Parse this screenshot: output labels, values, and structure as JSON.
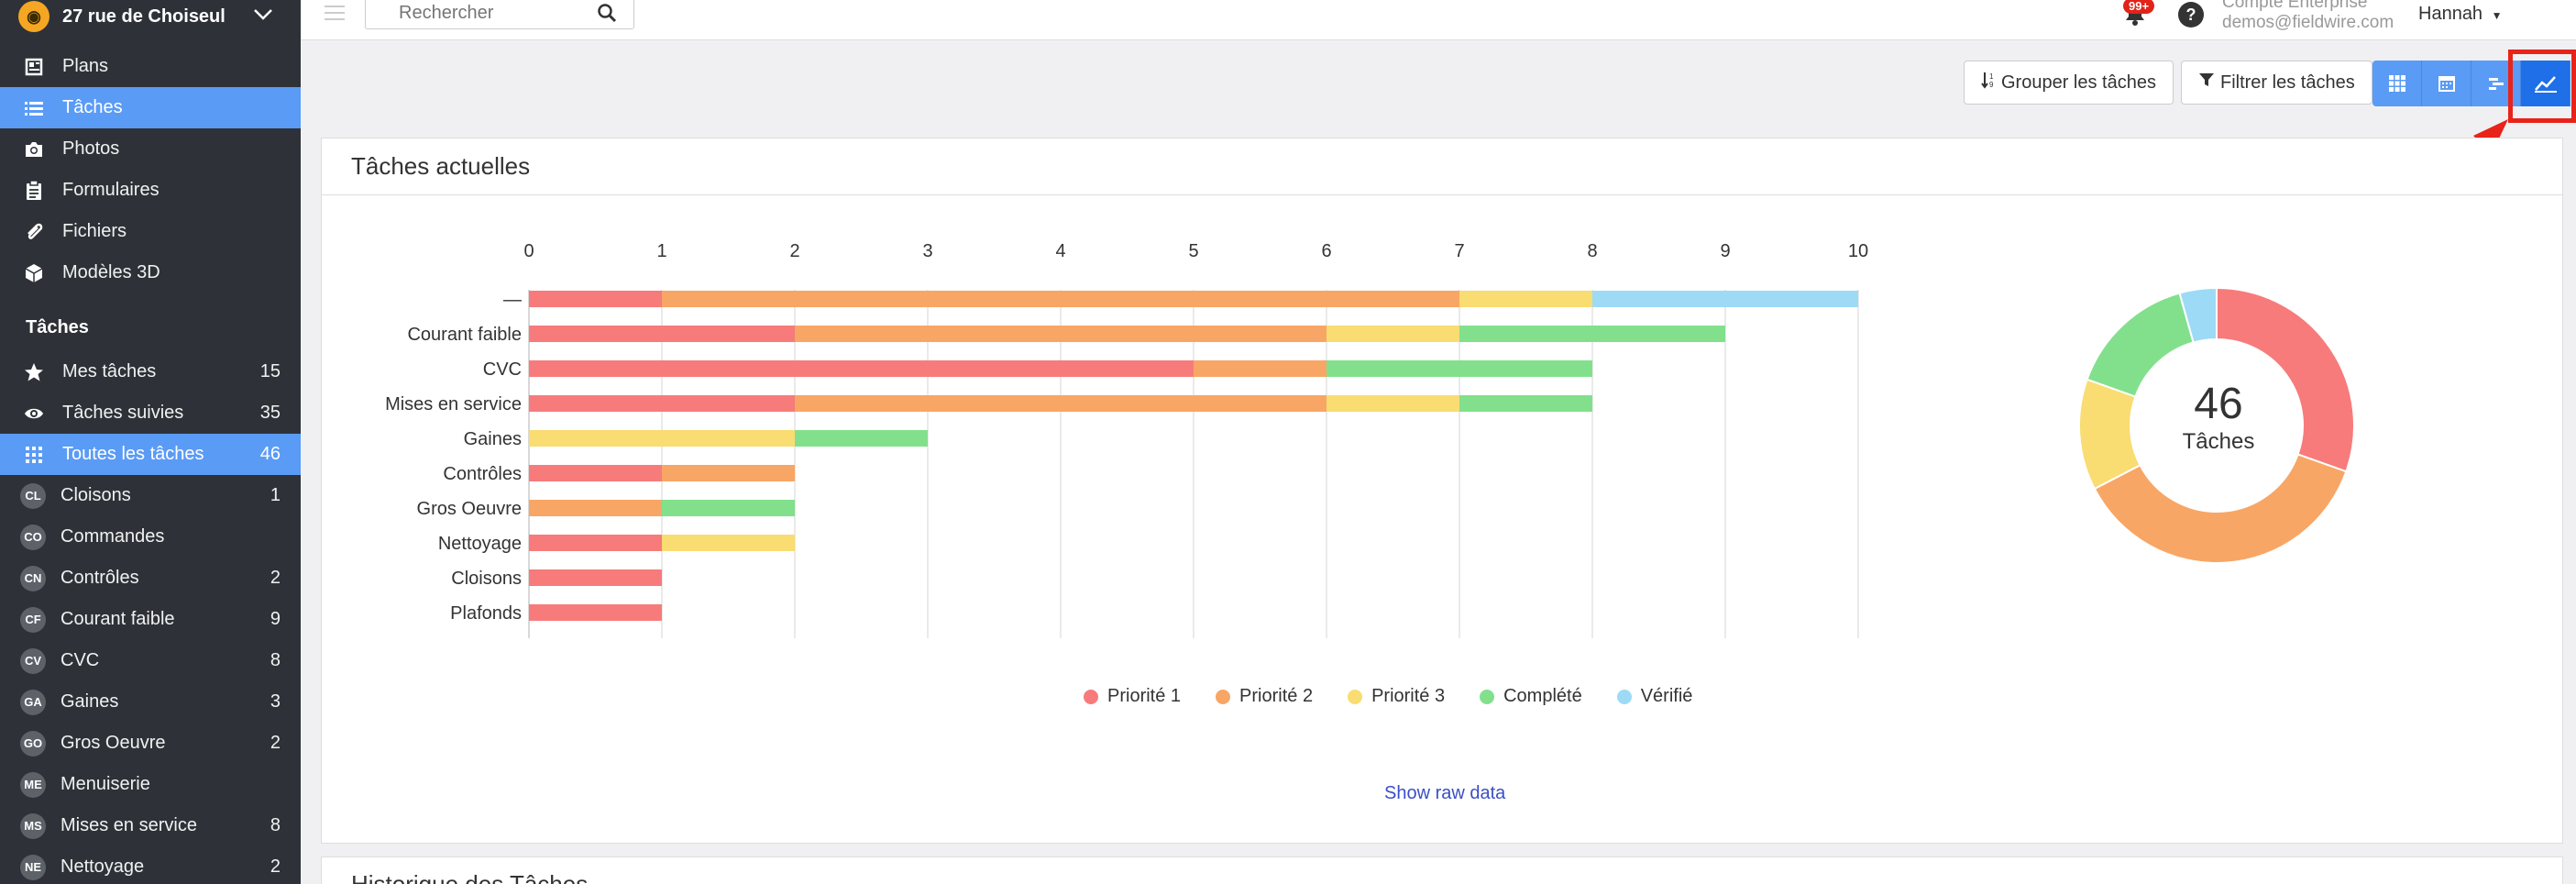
{
  "project": {
    "name": "27 rue de Choiseul"
  },
  "nav": [
    {
      "label": "Plans",
      "icon": "plans-icon"
    },
    {
      "label": "Tâches",
      "icon": "list-icon",
      "active": true
    },
    {
      "label": "Photos",
      "icon": "camera-icon"
    },
    {
      "label": "Formulaires",
      "icon": "clipboard-icon"
    },
    {
      "label": "Fichiers",
      "icon": "paperclip-icon"
    },
    {
      "label": "Modèles 3D",
      "icon": "cube-icon"
    }
  ],
  "tasks_section": {
    "title": "Tâches",
    "items": [
      {
        "label": "Mes tâches",
        "count": "15",
        "icon": "star-icon"
      },
      {
        "label": "Tâches suivies",
        "count": "35",
        "icon": "eye-icon"
      },
      {
        "label": "Toutes les tâches",
        "count": "46",
        "icon": "grid-icon",
        "active": true
      },
      {
        "abbr": "CL",
        "label": "Cloisons",
        "count": "1"
      },
      {
        "abbr": "CO",
        "label": "Commandes",
        "count": ""
      },
      {
        "abbr": "CN",
        "label": "Contrôles",
        "count": "2"
      },
      {
        "abbr": "CF",
        "label": "Courant faible",
        "count": "9"
      },
      {
        "abbr": "CV",
        "label": "CVC",
        "count": "8"
      },
      {
        "abbr": "GA",
        "label": "Gaines",
        "count": "3"
      },
      {
        "abbr": "GO",
        "label": "Gros Oeuvre",
        "count": "2"
      },
      {
        "abbr": "ME",
        "label": "Menuiserie",
        "count": ""
      },
      {
        "abbr": "MS",
        "label": "Mises en service",
        "count": "8"
      },
      {
        "abbr": "NE",
        "label": "Nettoyage",
        "count": "2"
      }
    ]
  },
  "topbar": {
    "search_placeholder": "Rechercher",
    "notifications": "99+",
    "help": "?",
    "account_type": "Compte Enterprise",
    "account_email": "demos@fieldwire.com",
    "user": "Hannah"
  },
  "toolbar": {
    "group_label": "Grouper les tâches",
    "filter_label": "Filtrer les tâches"
  },
  "panel": {
    "title": "Tâches actuelles",
    "show_raw": "Show raw data",
    "next_title": "Historique des Tâches"
  },
  "colors": {
    "p1": "#f77b7b",
    "p2": "#f8a665",
    "p3": "#f9dc72",
    "done": "#82e08c",
    "verified": "#9ddaf6"
  },
  "chart_data": [
    {
      "type": "bar",
      "orientation": "horizontal",
      "stacked": true,
      "categories": [
        "—",
        "Courant faible",
        "CVC",
        "Mises en service",
        "Gaines",
        "Contrôles",
        "Gros Oeuvre",
        "Nettoyage",
        "Cloisons",
        "Plafonds"
      ],
      "series": [
        {
          "name": "Priorité 1",
          "color": "#f77b7b",
          "values": [
            1,
            2,
            5,
            2,
            0,
            1,
            0,
            1,
            1,
            1
          ]
        },
        {
          "name": "Priorité 2",
          "color": "#f8a665",
          "values": [
            6,
            4,
            1,
            4,
            0,
            1,
            1,
            0,
            0,
            0
          ]
        },
        {
          "name": "Priorité 3",
          "color": "#f9dc72",
          "values": [
            1,
            1,
            0,
            1,
            2,
            0,
            0,
            1,
            0,
            0
          ]
        },
        {
          "name": "Complété",
          "color": "#82e08c",
          "values": [
            0,
            2,
            2,
            1,
            1,
            0,
            1,
            0,
            0,
            0
          ]
        },
        {
          "name": "Vérifié",
          "color": "#9ddaf6",
          "values": [
            2,
            0,
            0,
            0,
            0,
            0,
            0,
            0,
            0,
            0
          ]
        }
      ],
      "xticks": [
        0,
        1,
        2,
        3,
        4,
        5,
        6,
        7,
        8,
        9,
        10
      ],
      "xlim": [
        0,
        10
      ],
      "legend": "bottom"
    },
    {
      "type": "pie",
      "donut": true,
      "center_value": "46",
      "center_label": "Tâches",
      "slices": [
        {
          "name": "Priorité 1",
          "color": "#f77b7b",
          "value": 14
        },
        {
          "name": "Priorité 2",
          "color": "#f8a665",
          "value": 17
        },
        {
          "name": "Priorité 3",
          "color": "#f9dc72",
          "value": 6
        },
        {
          "name": "Complété",
          "color": "#82e08c",
          "value": 7
        },
        {
          "name": "Vérifié",
          "color": "#9ddaf6",
          "value": 2
        }
      ]
    }
  ]
}
